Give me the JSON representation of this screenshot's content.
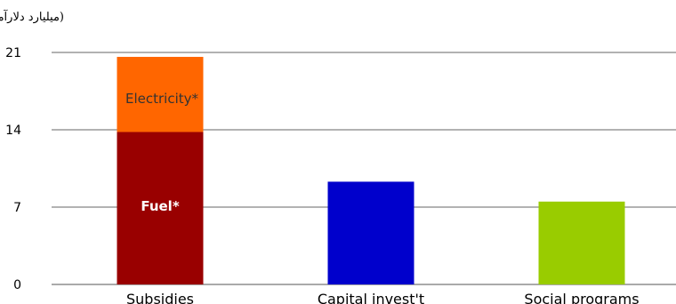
{
  "chart_data": {
    "type": "bar",
    "stacked": true,
    "ylabel": "(میلیارد دلارآمریکا)",
    "ylim": [
      0,
      21
    ],
    "yticks": [
      0,
      7,
      14,
      21
    ],
    "grid": true,
    "legend": "none",
    "categories": [
      "Subsidies",
      "Capital invest't",
      "Social programs"
    ],
    "bars": [
      {
        "category": "Subsidies",
        "segments": [
          {
            "label": "Fuel*",
            "value": 13.8,
            "color": "#990000",
            "label_color": "#ffffff"
          },
          {
            "label": "Electricity*",
            "value": 6.8,
            "color": "#ff6600",
            "label_color": "#333333"
          }
        ]
      },
      {
        "category": "Capital invest't",
        "segments": [
          {
            "label": "",
            "value": 9.3,
            "color": "#0000cc",
            "label_color": "#ffffff"
          }
        ]
      },
      {
        "category": "Social programs",
        "segments": [
          {
            "label": "",
            "value": 7.5,
            "color": "#99cc00",
            "label_color": "#ffffff"
          }
        ]
      }
    ]
  }
}
